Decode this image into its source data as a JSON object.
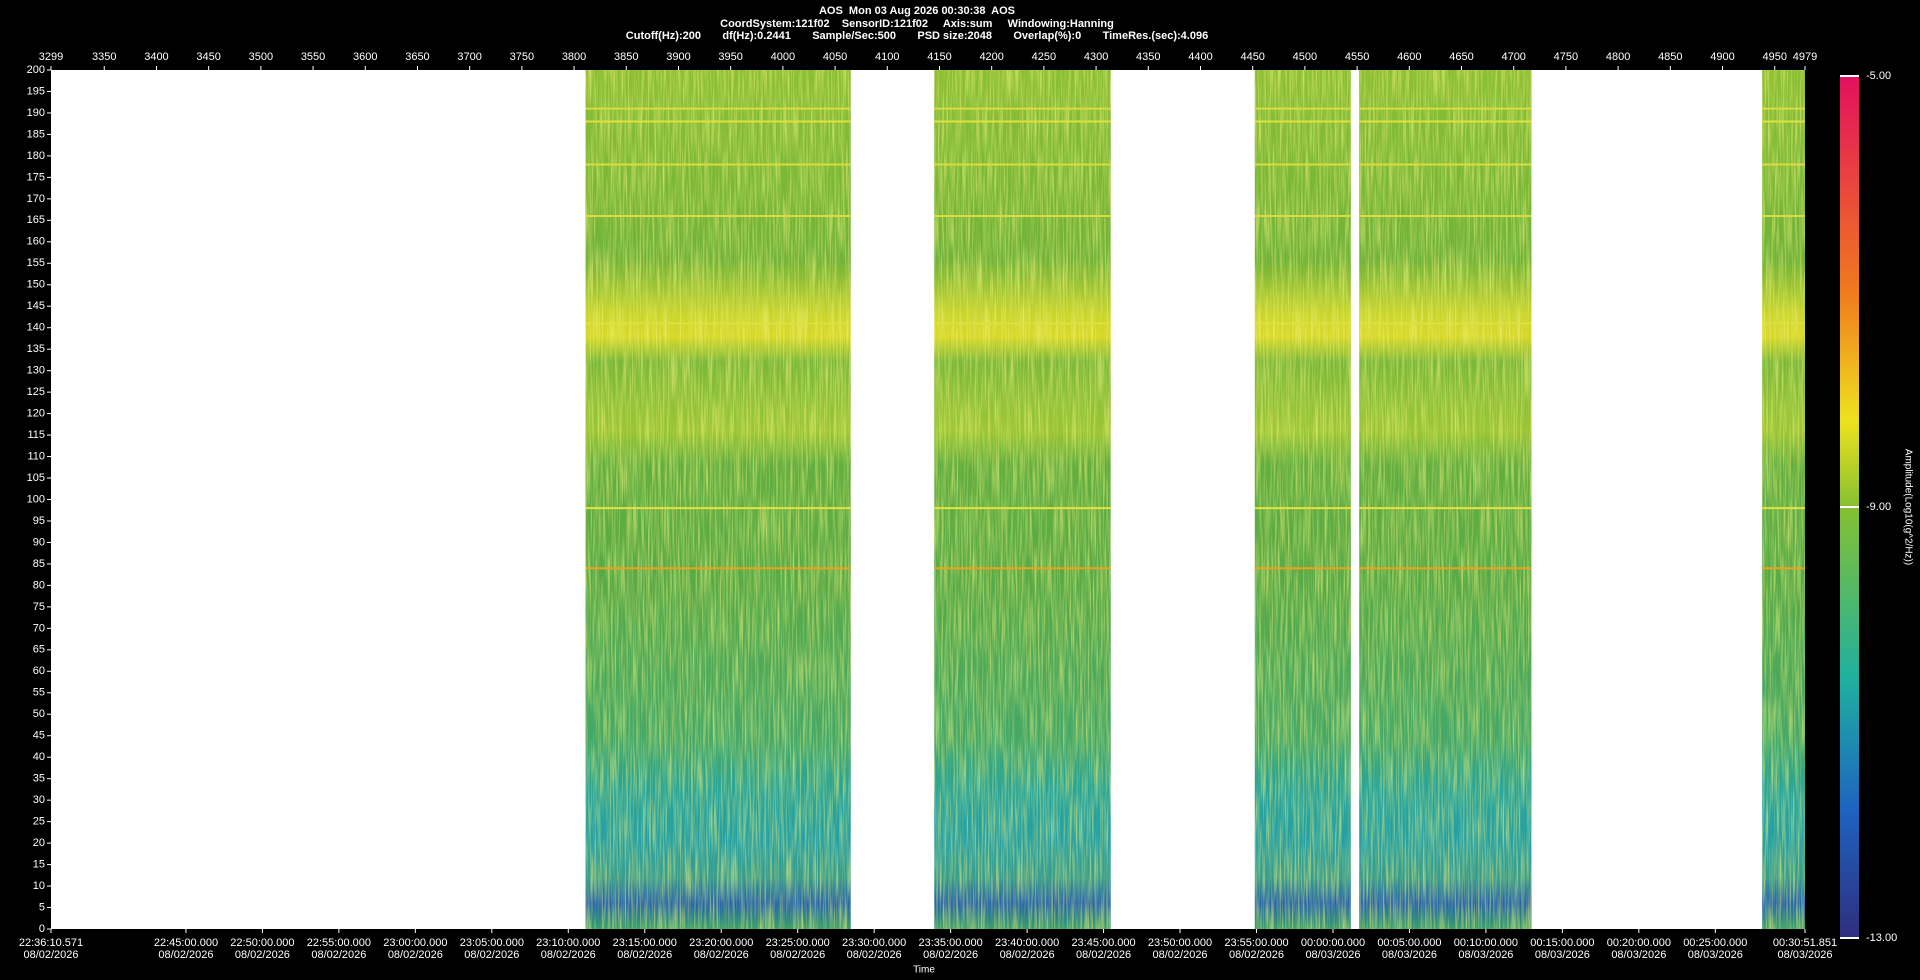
{
  "chart_data": {
    "type": "spectrogram",
    "header": [
      "AOS  Mon 03 Aug 2026 00:30:38  AOS",
      "CoordSystem:121f02    SensorID:121f02     Axis:sum     Windowing:Hanning",
      "Cutoff(Hz):200       df(Hz):0.2441       Sample/Sec:500       PSD size:2048       Overlap(%):0       TimeRes.(sec):4.096"
    ],
    "xlabel": "Time",
    "colorbar_label": "Amplitude(Log10(g^2/Hz))",
    "xlim": [
      3299,
      4979
    ],
    "xticks": [
      3299,
      3350,
      3400,
      3450,
      3500,
      3550,
      3600,
      3650,
      3700,
      3750,
      3800,
      3850,
      3900,
      3950,
      4000,
      4050,
      4100,
      4150,
      4200,
      4250,
      4300,
      4350,
      4400,
      4450,
      4500,
      4550,
      4600,
      4650,
      4700,
      4750,
      4800,
      4850,
      4900,
      4950,
      4979
    ],
    "x2lim": [
      81370.571,
      88251.851
    ],
    "x2ticks": [
      {
        "value": 81370.571,
        "label": "22:36:10.571",
        "date": "08/02/2026"
      },
      {
        "value": 81900,
        "label": "22:45:00.000",
        "date": "08/02/2026"
      },
      {
        "value": 82200,
        "label": "22:50:00.000",
        "date": "08/02/2026"
      },
      {
        "value": 82500,
        "label": "22:55:00.000",
        "date": "08/02/2026"
      },
      {
        "value": 82800,
        "label": "23:00:00.000",
        "date": "08/02/2026"
      },
      {
        "value": 83100,
        "label": "23:05:00.000",
        "date": "08/02/2026"
      },
      {
        "value": 83400,
        "label": "23:10:00.000",
        "date": "08/02/2026"
      },
      {
        "value": 83700,
        "label": "23:15:00.000",
        "date": "08/02/2026"
      },
      {
        "value": 84000,
        "label": "23:20:00.000",
        "date": "08/02/2026"
      },
      {
        "value": 84300,
        "label": "23:25:00.000",
        "date": "08/02/2026"
      },
      {
        "value": 84600,
        "label": "23:30:00.000",
        "date": "08/02/2026"
      },
      {
        "value": 84900,
        "label": "23:35:00.000",
        "date": "08/02/2026"
      },
      {
        "value": 85200,
        "label": "23:40:00.000",
        "date": "08/02/2026"
      },
      {
        "value": 85500,
        "label": "23:45:00.000",
        "date": "08/02/2026"
      },
      {
        "value": 85800,
        "label": "23:50:00.000",
        "date": "08/02/2026"
      },
      {
        "value": 86100,
        "label": "23:55:00.000",
        "date": "08/02/2026"
      },
      {
        "value": 86400,
        "label": "00:00:00.000",
        "date": "08/03/2026"
      },
      {
        "value": 86700,
        "label": "00:05:00.000",
        "date": "08/03/2026"
      },
      {
        "value": 87000,
        "label": "00:10:00.000",
        "date": "08/03/2026"
      },
      {
        "value": 87300,
        "label": "00:15:00.000",
        "date": "08/03/2026"
      },
      {
        "value": 87600,
        "label": "00:20:00.000",
        "date": "08/03/2026"
      },
      {
        "value": 87900,
        "label": "00:25:00.000",
        "date": "08/03/2026"
      },
      {
        "value": 88251.851,
        "label": "00:30:51.851",
        "date": "08/03/2026"
      }
    ],
    "ylim": [
      0,
      200
    ],
    "yticks": [
      0,
      5,
      10,
      15,
      20,
      25,
      30,
      35,
      40,
      45,
      50,
      55,
      60,
      65,
      70,
      75,
      80,
      85,
      90,
      95,
      100,
      105,
      110,
      115,
      120,
      125,
      130,
      135,
      140,
      145,
      150,
      155,
      160,
      165,
      170,
      175,
      180,
      185,
      190,
      195,
      200
    ],
    "zlim": [
      -13,
      -5
    ],
    "zticks": [
      {
        "value": -5,
        "label": "-5.00"
      },
      {
        "value": -9,
        "label": "-9.00"
      },
      {
        "value": -13,
        "label": "-13.00"
      }
    ],
    "segments": [
      [
        3811,
        4065
      ],
      [
        4145,
        4314
      ],
      [
        4452,
        4544
      ],
      [
        4552,
        4717
      ],
      [
        4938,
        4979
      ]
    ],
    "lines": [
      {
        "freq": 84,
        "color": "#f0a020"
      },
      {
        "freq": 98,
        "color": "#e8e040"
      },
      {
        "freq": 141,
        "color": "#e0e040"
      },
      {
        "freq": 166,
        "color": "#d8dc40"
      },
      {
        "freq": 178,
        "color": "#d8dc40"
      },
      {
        "freq": 188,
        "color": "#e0e040"
      },
      {
        "freq": 191,
        "color": "#d8dc40"
      }
    ]
  }
}
